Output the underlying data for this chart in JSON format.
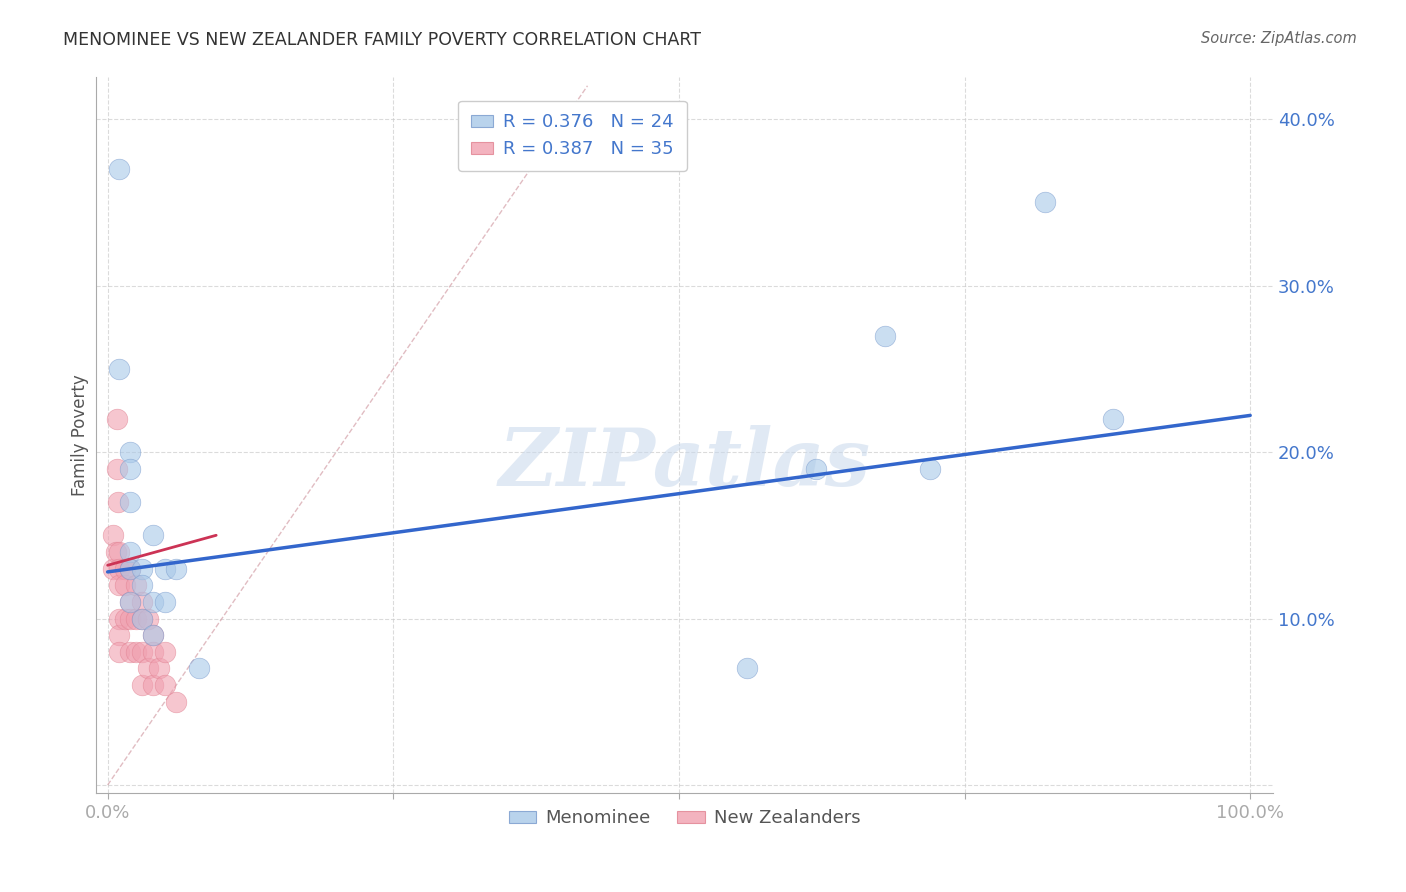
{
  "title": "MENOMINEE VS NEW ZEALANDER FAMILY POVERTY CORRELATION CHART",
  "source": "Source: ZipAtlas.com",
  "ylabel": "Family Poverty",
  "watermark": "ZIPatlas",
  "legend_blue_r": "R = 0.376",
  "legend_blue_n": "N = 24",
  "legend_pink_r": "R = 0.387",
  "legend_pink_n": "N = 35",
  "blue_scatter_color": "#a8c8e8",
  "pink_scatter_color": "#f0a0b0",
  "blue_line_color": "#3366cc",
  "pink_line_color": "#cc3355",
  "axis_label_color": "#4477cc",
  "title_color": "#333333",
  "source_color": "#666666",
  "menominee_x": [
    0.01,
    0.01,
    0.02,
    0.02,
    0.02,
    0.02,
    0.02,
    0.02,
    0.03,
    0.03,
    0.03,
    0.04,
    0.04,
    0.04,
    0.05,
    0.05,
    0.06,
    0.08,
    0.56,
    0.62,
    0.68,
    0.72,
    0.82,
    0.88
  ],
  "menominee_y": [
    0.37,
    0.25,
    0.2,
    0.19,
    0.17,
    0.14,
    0.13,
    0.11,
    0.13,
    0.12,
    0.1,
    0.15,
    0.11,
    0.09,
    0.13,
    0.11,
    0.13,
    0.07,
    0.07,
    0.19,
    0.27,
    0.19,
    0.35,
    0.22
  ],
  "nz_x": [
    0.005,
    0.005,
    0.007,
    0.008,
    0.008,
    0.009,
    0.01,
    0.01,
    0.01,
    0.01,
    0.01,
    0.01,
    0.015,
    0.015,
    0.015,
    0.02,
    0.02,
    0.02,
    0.02,
    0.025,
    0.025,
    0.025,
    0.03,
    0.03,
    0.03,
    0.03,
    0.035,
    0.035,
    0.04,
    0.04,
    0.04,
    0.045,
    0.05,
    0.05,
    0.06
  ],
  "nz_y": [
    0.15,
    0.13,
    0.14,
    0.22,
    0.19,
    0.17,
    0.14,
    0.13,
    0.12,
    0.1,
    0.09,
    0.08,
    0.13,
    0.12,
    0.1,
    0.13,
    0.11,
    0.1,
    0.08,
    0.12,
    0.1,
    0.08,
    0.11,
    0.1,
    0.08,
    0.06,
    0.1,
    0.07,
    0.09,
    0.08,
    0.06,
    0.07,
    0.08,
    0.06,
    0.05
  ],
  "blue_line_x0": 0.0,
  "blue_line_x1": 1.0,
  "blue_line_y0": 0.128,
  "blue_line_y1": 0.222,
  "pink_line_x0": 0.0,
  "pink_line_x1": 0.095,
  "pink_line_y0": 0.132,
  "pink_line_y1": 0.15,
  "diag_line_x": [
    0.0,
    0.42
  ],
  "diag_line_y": [
    0.0,
    0.42
  ],
  "xlim": [
    -0.01,
    1.02
  ],
  "ylim": [
    -0.005,
    0.425
  ],
  "ytick_positions": [
    0.0,
    0.1,
    0.2,
    0.3,
    0.4
  ],
  "ytick_labels_right": [
    "",
    "10.0%",
    "20.0%",
    "30.0%",
    "40.0%"
  ],
  "xtick_positions": [
    0.0,
    0.25,
    0.5,
    0.75,
    1.0
  ],
  "xtick_labels": [
    "0.0%",
    "",
    "",
    "",
    "100.0%"
  ],
  "grid_color": "#cccccc",
  "background_color": "#ffffff"
}
